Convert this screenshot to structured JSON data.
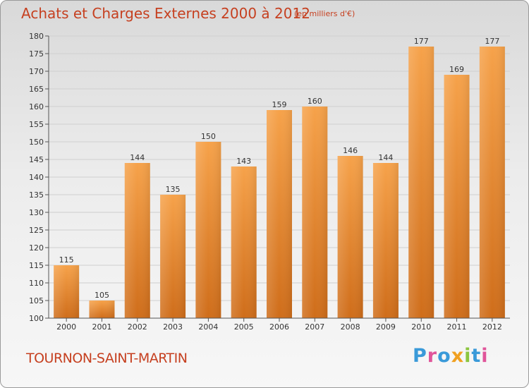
{
  "header": {
    "title": "Achats et Charges Externes 2000 à 2012",
    "subtitle": "(en milliers d'€)"
  },
  "footer": {
    "commune": "TOURNON-SAINT-MARTIN",
    "logo": {
      "letters": [
        "P",
        "r",
        "o",
        "x",
        "i",
        "t",
        "i"
      ],
      "colors": [
        "#3a9ad9",
        "#e0559a",
        "#3a9ad9",
        "#f0a020",
        "#8cc63f",
        "#3a9ad9",
        "#e0559a"
      ]
    }
  },
  "chart_data": {
    "type": "bar",
    "categories": [
      "2000",
      "2001",
      "2002",
      "2003",
      "2004",
      "2005",
      "2006",
      "2007",
      "2008",
      "2009",
      "2010",
      "2011",
      "2012"
    ],
    "values": [
      115,
      105,
      144,
      135,
      150,
      143,
      159,
      160,
      146,
      144,
      177,
      169,
      177
    ],
    "ylim": [
      100,
      180
    ],
    "yticks": [
      100,
      105,
      110,
      115,
      120,
      125,
      130,
      135,
      140,
      145,
      150,
      155,
      160,
      165,
      170,
      175,
      180
    ],
    "grid": true,
    "bar_color_top": "#f6a24a",
    "bar_color_bottom": "#cf6d1a"
  }
}
